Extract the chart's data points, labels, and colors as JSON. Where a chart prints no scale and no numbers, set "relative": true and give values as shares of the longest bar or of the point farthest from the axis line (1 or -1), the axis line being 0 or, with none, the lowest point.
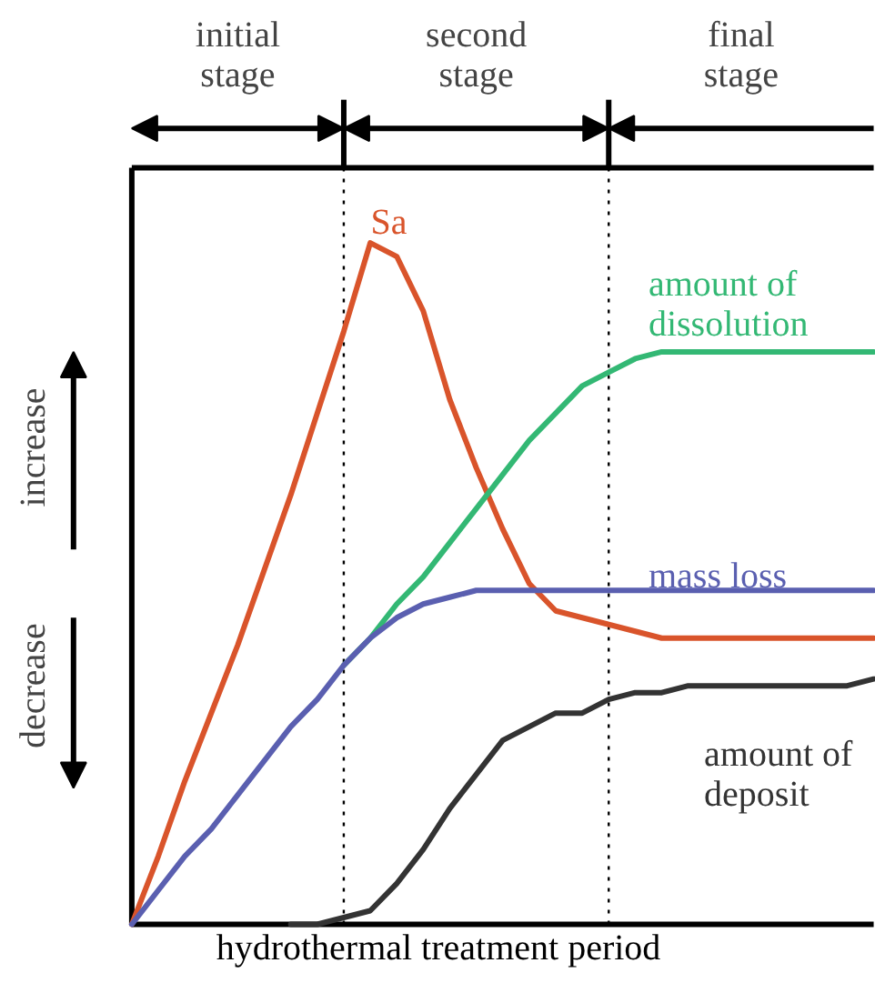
{
  "chart_data": {
    "type": "line",
    "relative": true,
    "categories": [
      null,
      null,
      null,
      null,
      null,
      null,
      null,
      null,
      null,
      null,
      null,
      null,
      null,
      null,
      null,
      null,
      null,
      null,
      null,
      null,
      null,
      null,
      null,
      null,
      null,
      null,
      null,
      null,
      null
    ],
    "xlabel": "hydrothermal treatment period",
    "series": [
      {
        "name": "Sa",
        "color": "#d9542b",
        "values": [
          0,
          0.1,
          0.21,
          0.31,
          0.41,
          0.52,
          0.63,
          0.75,
          0.87,
          1.0,
          0.98,
          0.9,
          0.77,
          0.67,
          0.58,
          0.5,
          0.46,
          0.45,
          0.44,
          0.43,
          0.42,
          0.42,
          0.42,
          0.42,
          0.42,
          0.42,
          0.42,
          0.42,
          0.42
        ]
      },
      {
        "name": "amount of\ndissolution",
        "color": "#33b874",
        "values": [
          null,
          null,
          null,
          null,
          null,
          null,
          null,
          null,
          0.38,
          0.42,
          0.47,
          0.51,
          0.56,
          0.61,
          0.66,
          0.71,
          0.75,
          0.79,
          0.81,
          0.83,
          0.84,
          0.84,
          0.84,
          0.84,
          0.84,
          0.84,
          0.84,
          0.84,
          0.84
        ]
      },
      {
        "name": "mass loss",
        "color": "#5a5fb0",
        "values": [
          0,
          0.05,
          0.1,
          0.14,
          0.19,
          0.24,
          0.29,
          0.33,
          0.38,
          0.42,
          0.45,
          0.47,
          0.48,
          0.49,
          0.49,
          0.49,
          0.49,
          0.49,
          0.49,
          0.49,
          0.49,
          0.49,
          0.49,
          0.49,
          0.49,
          0.49,
          0.49,
          0.49,
          0.49
        ]
      },
      {
        "name": "amount of\ndeposit",
        "color": "#333333",
        "values": [
          null,
          null,
          null,
          null,
          null,
          null,
          0,
          0,
          0.01,
          0.02,
          0.06,
          0.11,
          0.17,
          0.22,
          0.27,
          0.29,
          0.31,
          0.31,
          0.33,
          0.34,
          0.34,
          0.35,
          0.35,
          0.35,
          0.35,
          0.35,
          0.35,
          0.35,
          0.36
        ]
      }
    ],
    "annotations": [
      "initial\nstage",
      "second\nstage",
      "final\nstage",
      "increase",
      "decrease"
    ]
  }
}
